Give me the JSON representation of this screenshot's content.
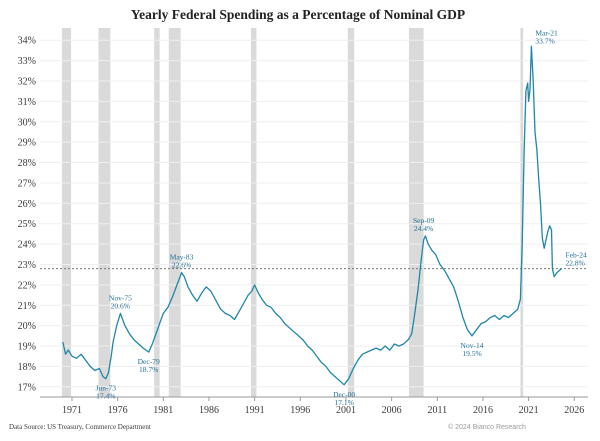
{
  "chart_data": {
    "type": "line",
    "title": "Yearly Federal Spending as a Percentage of Nominal GDP",
    "xlabel": "",
    "ylabel": "",
    "xlim": [
      1967.5,
      2027.5
    ],
    "ylim": [
      16.5,
      34.6
    ],
    "x_ticks": [
      1971,
      1976,
      1981,
      1986,
      1991,
      1996,
      2001,
      2006,
      2011,
      2016,
      2021,
      2026
    ],
    "y_ticks": [
      17,
      18,
      19,
      20,
      21,
      22,
      23,
      24,
      25,
      26,
      27,
      28,
      29,
      30,
      31,
      32,
      33,
      34
    ],
    "y_tick_suffix": "%",
    "reference_line": 22.8,
    "recessions": [
      [
        1969.9,
        1970.9
      ],
      [
        1973.9,
        1975.2
      ],
      [
        1980.0,
        1980.6
      ],
      [
        1981.6,
        1982.9
      ],
      [
        1990.6,
        1991.2
      ],
      [
        2001.2,
        2001.9
      ],
      [
        2007.9,
        2009.5
      ],
      [
        2020.1,
        2020.4
      ]
    ],
    "series": [
      {
        "color": "#1f87a8",
        "x": [
          1970.0,
          1970.3,
          1970.6,
          1971.0,
          1971.5,
          1972.0,
          1972.5,
          1973.0,
          1973.5,
          1974.0,
          1974.4,
          1974.7,
          1975.0,
          1975.3,
          1975.5,
          1975.9,
          1976.3,
          1976.8,
          1977.3,
          1977.8,
          1978.3,
          1978.8,
          1979.4,
          1979.8,
          1980.2,
          1980.6,
          1981.0,
          1981.5,
          1982.0,
          1982.5,
          1983.0,
          1983.3,
          1983.7,
          1984.2,
          1984.7,
          1985.2,
          1985.7,
          1986.2,
          1986.8,
          1987.3,
          1987.8,
          1988.3,
          1988.8,
          1989.3,
          1989.8,
          1990.3,
          1990.7,
          1991.0,
          1991.4,
          1991.8,
          1992.3,
          1992.8,
          1993.3,
          1993.8,
          1994.3,
          1994.8,
          1995.3,
          1995.8,
          1996.3,
          1996.8,
          1997.3,
          1997.8,
          1998.3,
          1998.8,
          1999.3,
          1999.8,
          2000.3,
          2000.8,
          2001.3,
          2001.8,
          2002.3,
          2002.8,
          2003.3,
          2003.8,
          2004.3,
          2004.8,
          2005.3,
          2005.8,
          2006.3,
          2006.8,
          2007.3,
          2007.8,
          2008.2,
          2008.5,
          2008.9,
          2009.2,
          2009.5,
          2009.7,
          2010.0,
          2010.4,
          2010.8,
          2011.3,
          2011.8,
          2012.3,
          2012.8,
          2013.3,
          2013.8,
          2014.3,
          2014.8,
          2015.3,
          2015.8,
          2016.3,
          2016.8,
          2017.3,
          2017.8,
          2018.3,
          2018.8,
          2019.3,
          2019.8,
          2020.1,
          2020.3,
          2020.5,
          2020.7,
          2020.9,
          2021.0,
          2021.15,
          2021.3,
          2021.5,
          2021.7,
          2021.9,
          2022.1,
          2022.3,
          2022.5,
          2022.7,
          2022.9,
          2023.1,
          2023.3,
          2023.5,
          2023.6,
          2023.8,
          2024.1,
          2024.6
        ],
        "values": [
          19.2,
          18.6,
          18.8,
          18.5,
          18.4,
          18.6,
          18.3,
          18.0,
          17.8,
          17.9,
          17.5,
          17.4,
          17.7,
          18.5,
          19.2,
          20.0,
          20.6,
          20.0,
          19.6,
          19.3,
          19.1,
          18.9,
          18.7,
          19.1,
          19.6,
          20.1,
          20.6,
          20.9,
          21.4,
          22.0,
          22.6,
          22.4,
          21.9,
          21.5,
          21.2,
          21.6,
          21.9,
          21.7,
          21.2,
          20.8,
          20.6,
          20.5,
          20.3,
          20.7,
          21.1,
          21.5,
          21.7,
          22.0,
          21.6,
          21.3,
          21.0,
          20.9,
          20.6,
          20.4,
          20.1,
          19.9,
          19.7,
          19.5,
          19.3,
          19.0,
          18.8,
          18.5,
          18.2,
          18.0,
          17.7,
          17.5,
          17.3,
          17.1,
          17.4,
          17.9,
          18.3,
          18.6,
          18.7,
          18.8,
          18.9,
          18.8,
          19.0,
          18.8,
          19.1,
          19.0,
          19.1,
          19.3,
          19.6,
          20.5,
          21.8,
          23.1,
          24.2,
          24.4,
          24.0,
          23.7,
          23.5,
          23.0,
          22.7,
          22.3,
          21.9,
          21.2,
          20.4,
          19.8,
          19.5,
          19.8,
          20.1,
          20.2,
          20.4,
          20.5,
          20.3,
          20.5,
          20.4,
          20.6,
          20.8,
          21.3,
          24.0,
          28.5,
          31.5,
          31.9,
          31.0,
          31.6,
          33.7,
          32.0,
          29.5,
          28.6,
          27.2,
          26.0,
          24.3,
          23.8,
          24.2,
          24.6,
          24.9,
          24.7,
          22.8,
          22.4,
          22.6,
          22.8
        ]
      }
    ],
    "annotations": [
      {
        "date": "Jun-73",
        "value": "17.4%",
        "x": 1974.7,
        "y": 17.4,
        "pos": "below"
      },
      {
        "date": "Nov-75",
        "value": "20.6%",
        "x": 1976.3,
        "y": 20.6,
        "pos": "above"
      },
      {
        "date": "Dec-79",
        "value": "18.7%",
        "x": 1979.4,
        "y": 18.7,
        "pos": "below"
      },
      {
        "date": "May-83",
        "value": "22.6%",
        "x": 1983.0,
        "y": 22.6,
        "pos": "above"
      },
      {
        "date": "Dec-00",
        "value": "17.1%",
        "x": 2000.8,
        "y": 17.1,
        "pos": "below"
      },
      {
        "date": "Sep-09",
        "value": "24.4%",
        "x": 2009.5,
        "y": 24.4,
        "pos": "above"
      },
      {
        "date": "Nov-14",
        "value": "19.5%",
        "x": 2014.8,
        "y": 19.5,
        "pos": "below"
      },
      {
        "date": "Mar-21",
        "value": "33.7%",
        "x": 2021.3,
        "y": 33.7,
        "pos": "above-right"
      },
      {
        "date": "Feb-24",
        "value": "22.8%",
        "x": 2024.6,
        "y": 22.8,
        "pos": "above-right"
      }
    ]
  },
  "footer": {
    "source": "Data Source: US Treasury, Commerce Department",
    "watermark": "© 2024 Bianco Research"
  }
}
